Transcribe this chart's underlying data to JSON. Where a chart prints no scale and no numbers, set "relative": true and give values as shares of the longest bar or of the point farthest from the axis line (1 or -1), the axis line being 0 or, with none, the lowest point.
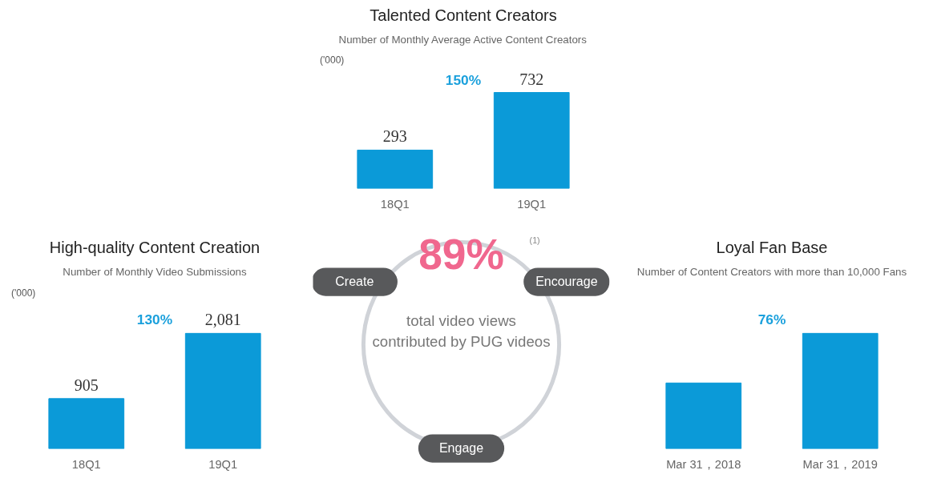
{
  "chart_data": [
    {
      "type": "bar",
      "title": "Talented Content Creators",
      "subtitle": "Number of Monthly Average Active Content Creators",
      "ylabel": "('000)",
      "categories": [
        "18Q1",
        "19Q1"
      ],
      "values": [
        293,
        732
      ],
      "value_labels": [
        "293",
        "732"
      ],
      "color": "#0b9ad8",
      "annotations": [
        "150%"
      ]
    },
    {
      "type": "other",
      "annotations": [
        "89%",
        "(1)",
        "total video views contributed by PUG videos",
        "Create",
        "Encourage",
        "Engage"
      ]
    },
    {
      "type": "bar",
      "title": "High-quality Content Creation",
      "subtitle": "Number of Monthly Video Submissions",
      "ylabel": "('000)",
      "categories": [
        "18Q1",
        "19Q1"
      ],
      "values": [
        905,
        2081
      ],
      "value_labels": [
        "905",
        "2,081"
      ],
      "color": "#0b9ad8",
      "annotations": [
        "130%"
      ]
    },
    {
      "type": "bar",
      "relative": true,
      "title": "Loyal Fan Base",
      "subtitle": "Number of Content Creators with more than 10,000 Fans",
      "categories": [
        "Mar 31，2018",
        "Mar 31，2019"
      ],
      "values": [
        0.57,
        1
      ],
      "color": "#0b9ad8",
      "annotations": [
        "76%"
      ]
    }
  ]
}
